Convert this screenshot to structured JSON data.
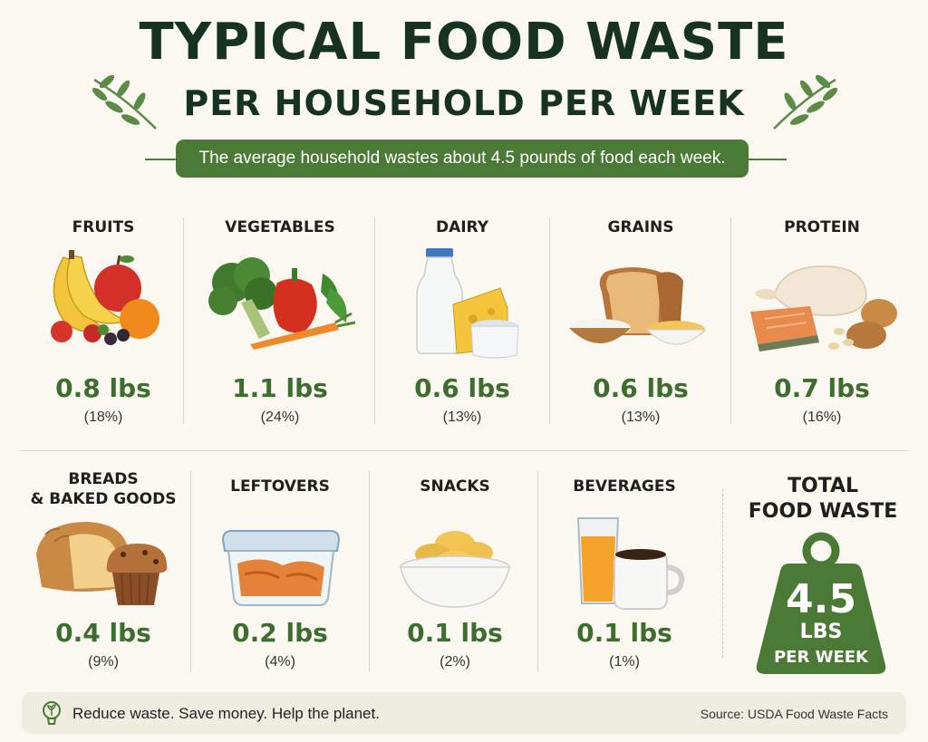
{
  "title": {
    "line1": "TYPICAL FOOD WASTE",
    "line2": "PER HOUSEHOLD PER WEEK"
  },
  "subtitle": "The average household wastes about 4.5 pounds of food each week.",
  "categories_row1": [
    {
      "label": "FRUITS",
      "amount": "0.8 lbs",
      "percent": "(18%)",
      "icon": "fruits-icon"
    },
    {
      "label": "VEGETABLES",
      "amount": "1.1 lbs",
      "percent": "(24%)",
      "icon": "vegetables-icon"
    },
    {
      "label": "DAIRY",
      "amount": "0.6 lbs",
      "percent": "(13%)",
      "icon": "dairy-icon"
    },
    {
      "label": "GRAINS",
      "amount": "0.6 lbs",
      "percent": "(13%)",
      "icon": "grains-icon"
    },
    {
      "label": "PROTEIN",
      "amount": "0.7 lbs",
      "percent": "(16%)",
      "icon": "protein-icon"
    }
  ],
  "categories_row2": [
    {
      "label_line1": "BREADS",
      "label_line2": "& BAKED GOODS",
      "amount": "0.4 lbs",
      "percent": "(9%)",
      "icon": "bread-icon"
    },
    {
      "label": "LEFTOVERS",
      "amount": "0.2 lbs",
      "percent": "(4%)",
      "icon": "leftovers-icon"
    },
    {
      "label": "SNACKS",
      "amount": "0.1 lbs",
      "percent": "(2%)",
      "icon": "snacks-icon"
    },
    {
      "label": "BEVERAGES",
      "amount": "0.1 lbs",
      "percent": "(1%)",
      "icon": "beverages-icon"
    }
  ],
  "total": {
    "title_line1": "TOTAL",
    "title_line2": "FOOD WASTE",
    "value": "4.5",
    "unit": "LBS",
    "period": "PER WEEK",
    "icon": "weight-icon"
  },
  "footer": {
    "slogan": "Reduce waste. Save money. Help the planet.",
    "source": "Source: USDA Food Waste Facts",
    "icon": "lightbulb-sprout-icon"
  },
  "colors": {
    "background": "#faf8f1",
    "accent_green": "#4b7a36",
    "title_dark": "#17331f",
    "amount_green": "#3d6d2f"
  }
}
